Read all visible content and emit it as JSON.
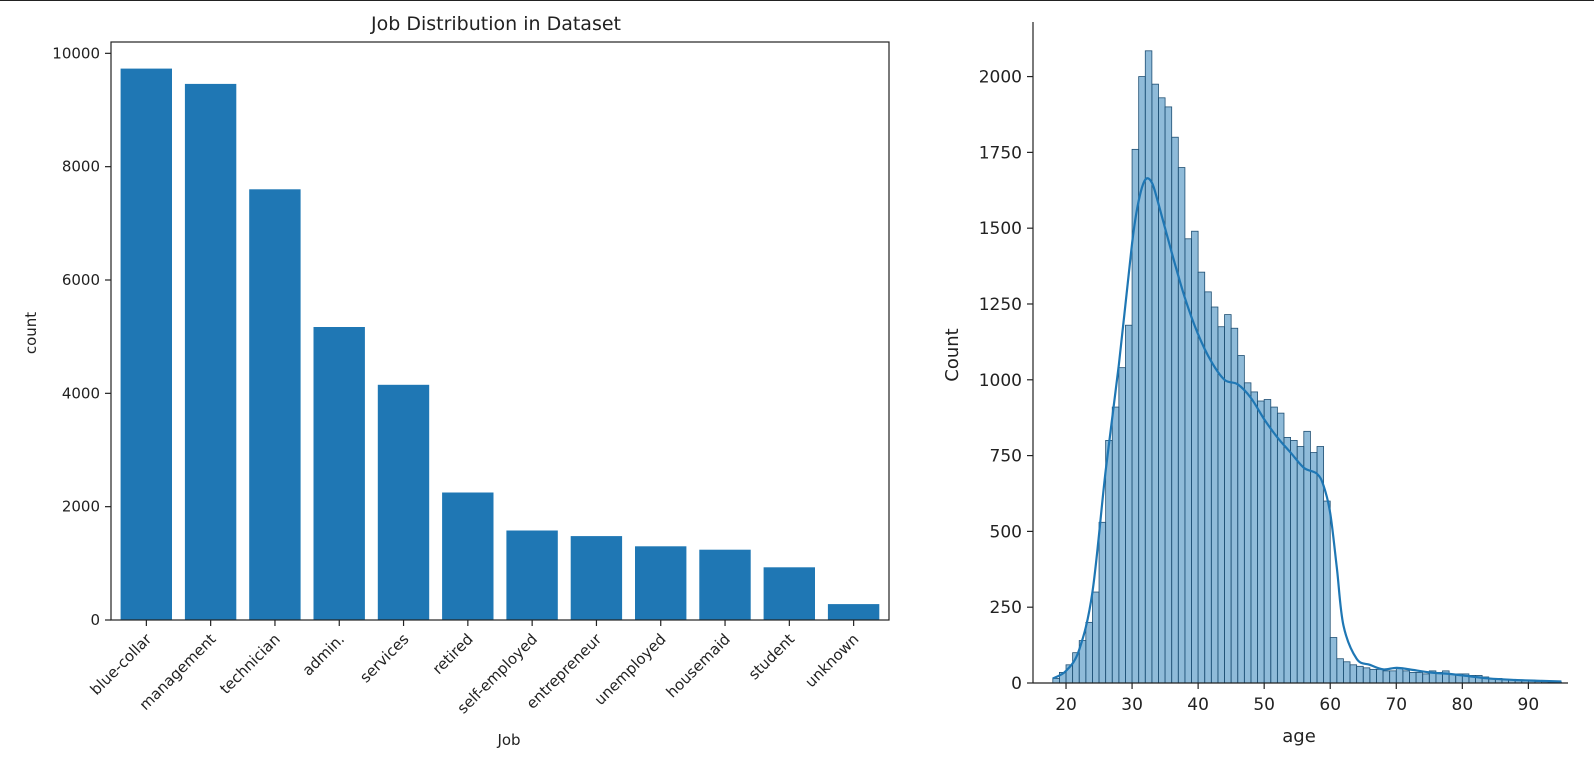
{
  "chart_data": [
    {
      "type": "bar",
      "title": "Job Distribution in Dataset",
      "xlabel": "Job",
      "ylabel": "count",
      "ylim": [
        0,
        10200
      ],
      "yticks": [
        0,
        2000,
        4000,
        6000,
        8000,
        10000
      ],
      "categories": [
        "blue-collar",
        "management",
        "technician",
        "admin.",
        "services",
        "retired",
        "self-employed",
        "entrepreneur",
        "unemployed",
        "housemaid",
        "student",
        "unknown"
      ],
      "values": [
        9730,
        9460,
        7600,
        5170,
        4150,
        2250,
        1580,
        1480,
        1300,
        1240,
        930,
        280
      ],
      "color": "#1f77b4",
      "grid": false,
      "legend": "none"
    },
    {
      "type": "histogram",
      "xlabel": "age",
      "ylabel": "Count",
      "xlim": [
        15,
        96
      ],
      "ylim": [
        0,
        2180
      ],
      "xticks": [
        20,
        30,
        40,
        50,
        60,
        70,
        80,
        90
      ],
      "yticks": [
        0,
        250,
        500,
        750,
        1000,
        1250,
        1500,
        1750,
        2000
      ],
      "bin_width": 1,
      "bins_start": [
        18,
        19,
        20,
        21,
        22,
        23,
        24,
        25,
        26,
        27,
        28,
        29,
        30,
        31,
        32,
        33,
        34,
        35,
        36,
        37,
        38,
        39,
        40,
        41,
        42,
        43,
        44,
        45,
        46,
        47,
        48,
        49,
        50,
        51,
        52,
        53,
        54,
        55,
        56,
        57,
        58,
        59,
        60,
        61,
        62,
        63,
        64,
        65,
        66,
        67,
        68,
        69,
        70,
        71,
        72,
        73,
        74,
        75,
        76,
        77,
        78,
        79,
        80,
        81,
        82,
        83,
        84,
        85,
        86,
        87,
        88,
        89,
        90,
        91,
        92,
        93,
        94
      ],
      "counts": [
        15,
        35,
        60,
        100,
        140,
        200,
        300,
        530,
        800,
        910,
        1040,
        1180,
        1760,
        2000,
        2085,
        1975,
        1930,
        1900,
        1800,
        1700,
        1465,
        1490,
        1355,
        1290,
        1240,
        1175,
        1215,
        1170,
        1080,
        990,
        960,
        930,
        935,
        910,
        890,
        810,
        800,
        780,
        830,
        760,
        780,
        600,
        150,
        80,
        70,
        60,
        55,
        50,
        45,
        45,
        40,
        40,
        50,
        40,
        35,
        35,
        30,
        40,
        35,
        40,
        30,
        30,
        30,
        25,
        25,
        20,
        15,
        15,
        12,
        10,
        8,
        8,
        6,
        5,
        4,
        3,
        3
      ],
      "kde_x": [
        18,
        20,
        22,
        24,
        26,
        28,
        30,
        31,
        32,
        33,
        34,
        36,
        38,
        40,
        42,
        44,
        46,
        48,
        50,
        52,
        54,
        56,
        58,
        59,
        60,
        61,
        62,
        64,
        66,
        68,
        70,
        72,
        75,
        78,
        80,
        84,
        88,
        92,
        95
      ],
      "kde_y": [
        15,
        40,
        110,
        300,
        700,
        1050,
        1450,
        1590,
        1660,
        1650,
        1580,
        1420,
        1270,
        1150,
        1060,
        1000,
        985,
        940,
        870,
        810,
        760,
        710,
        690,
        650,
        560,
        380,
        190,
        80,
        60,
        45,
        50,
        45,
        35,
        30,
        25,
        15,
        10,
        7,
        5
      ],
      "color": "#1f77b4",
      "grid": false,
      "legend": "none"
    }
  ]
}
